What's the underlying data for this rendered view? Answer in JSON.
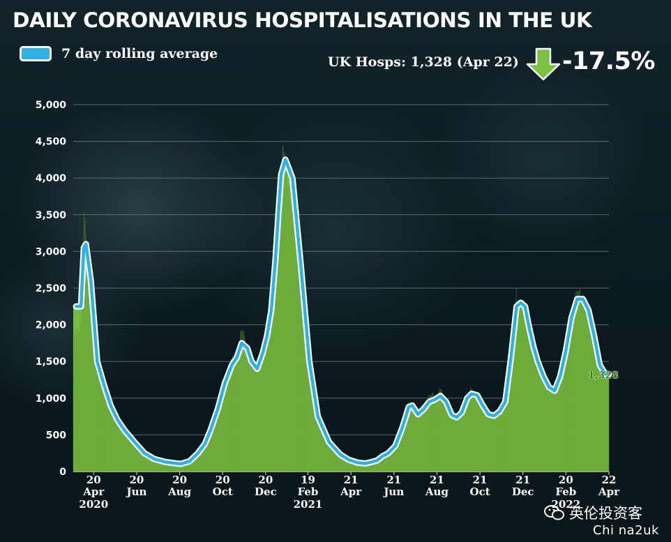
{
  "title": "DAILY CORONAVIRUS HOSPITALISATIONS IN THE UK",
  "legend": {
    "label": "7 day rolling average",
    "color": "#29b3e8"
  },
  "summary": {
    "text": "UK Hosps: 1,328 (Apr 22)",
    "change": "-17.5%",
    "arrow_color": "#7cc242"
  },
  "watermark": {
    "text": "英伦投资客",
    "subtext": "Chi na2uk",
    "icon": "wechat-icon"
  },
  "chart_data": {
    "type": "area",
    "title": "DAILY CORONAVIRUS HOSPITALISATIONS IN THE UK",
    "xlabel": "",
    "ylabel": "",
    "ylim": [
      0,
      5000
    ],
    "yticks": [
      0,
      500,
      1000,
      1500,
      2000,
      2500,
      3000,
      3500,
      4000,
      4500,
      5000
    ],
    "ytick_labels": [
      "0",
      "500",
      "1,000",
      "1,500",
      "2,000",
      "2,500",
      "3,000",
      "3,500",
      "4,000",
      "4,500",
      "5,000"
    ],
    "grid": true,
    "xticks": [
      {
        "day": 0,
        "top": "20",
        "bottom": "Apr",
        "year": "2020"
      },
      {
        "day": 61,
        "top": "20",
        "bottom": "Jun",
        "year": ""
      },
      {
        "day": 122,
        "top": "20",
        "bottom": "Aug",
        "year": ""
      },
      {
        "day": 183,
        "top": "20",
        "bottom": "Oct",
        "year": ""
      },
      {
        "day": 244,
        "top": "20",
        "bottom": "Dec",
        "year": ""
      },
      {
        "day": 304,
        "top": "19",
        "bottom": "Feb",
        "year": "2021"
      },
      {
        "day": 365,
        "top": "21",
        "bottom": "Apr",
        "year": ""
      },
      {
        "day": 426,
        "top": "21",
        "bottom": "Jun",
        "year": ""
      },
      {
        "day": 487,
        "top": "21",
        "bottom": "Aug",
        "year": ""
      },
      {
        "day": 548,
        "top": "21",
        "bottom": "Oct",
        "year": ""
      },
      {
        "day": 609,
        "top": "21",
        "bottom": "Dec",
        "year": ""
      },
      {
        "day": 670,
        "top": "20",
        "bottom": "Feb",
        "year": "2022"
      },
      {
        "day": 731,
        "top": "22",
        "bottom": "Apr",
        "year": ""
      }
    ],
    "xlim": [
      -29,
      731
    ],
    "series": [
      {
        "name": "7 day rolling average",
        "style": "line",
        "color": "#29b3e8",
        "x": [
          -25,
          -18,
          -14,
          -11,
          -4,
          5,
          14,
          24,
          34,
          44,
          58,
          72,
          86,
          102,
          118,
          124,
          136,
          148,
          158,
          166,
          176,
          186,
          196,
          203,
          210,
          218,
          224,
          232,
          240,
          246,
          252,
          258,
          262,
          266,
          272,
          282,
          294,
          306,
          318,
          334,
          350,
          362,
          375,
          386,
          402,
          410,
          418,
          428,
          438,
          447,
          452,
          460,
          468,
          476,
          484,
          492,
          500,
          508,
          515,
          522,
          530,
          536,
          544,
          552,
          560,
          568,
          576,
          584,
          592,
          600,
          606,
          612,
          617,
          624,
          630,
          638,
          646,
          654,
          662,
          670,
          678,
          686,
          694,
          702,
          710,
          718,
          726,
          731
        ],
        "y": [
          2250,
          2250,
          3050,
          3100,
          2600,
          1500,
          1200,
          900,
          700,
          560,
          400,
          250,
          170,
          130,
          110,
          105,
          140,
          250,
          380,
          570,
          850,
          1200,
          1450,
          1550,
          1750,
          1680,
          1500,
          1400,
          1620,
          1850,
          2200,
          2900,
          3500,
          4050,
          4250,
          4000,
          2800,
          1500,
          750,
          400,
          230,
          160,
          120,
          110,
          150,
          210,
          250,
          350,
          600,
          880,
          900,
          780,
          850,
          950,
          980,
          1030,
          950,
          770,
          740,
          800,
          1000,
          1060,
          1040,
          900,
          780,
          760,
          820,
          950,
          1550,
          2250,
          2300,
          2250,
          2000,
          1700,
          1500,
          1300,
          1150,
          1100,
          1300,
          1650,
          2100,
          2350,
          2350,
          2200,
          1850,
          1450,
          1328,
          1328
        ]
      },
      {
        "name": "",
        "style": "bars",
        "color": "#7cc242",
        "x": [
          -25,
          -18,
          -14,
          -11,
          -4,
          5,
          14,
          24,
          34,
          44,
          58,
          72,
          86,
          102,
          118,
          124,
          136,
          148,
          158,
          166,
          176,
          186,
          196,
          203,
          210,
          218,
          224,
          232,
          240,
          246,
          252,
          258,
          262,
          266,
          272,
          282,
          294,
          306,
          318,
          334,
          350,
          362,
          375,
          386,
          402,
          410,
          418,
          428,
          438,
          447,
          452,
          460,
          468,
          476,
          484,
          492,
          500,
          508,
          515,
          522,
          530,
          536,
          544,
          552,
          560,
          568,
          576,
          584,
          592,
          600,
          606,
          612,
          617,
          624,
          630,
          638,
          646,
          654,
          662,
          670,
          678,
          686,
          694,
          702,
          710,
          718,
          726,
          731
        ],
        "y": [
          1800,
          2100,
          3500,
          3200,
          2500,
          1400,
          1250,
          900,
          700,
          600,
          380,
          260,
          180,
          140,
          110,
          105,
          150,
          260,
          400,
          600,
          900,
          1250,
          1500,
          1600,
          1900,
          1700,
          1450,
          1450,
          1700,
          1900,
          2350,
          3100,
          3800,
          4350,
          4200,
          3700,
          2600,
          1400,
          700,
          380,
          220,
          150,
          120,
          110,
          160,
          220,
          260,
          380,
          650,
          900,
          880,
          800,
          900,
          1000,
          1050,
          1100,
          900,
          750,
          760,
          850,
          1050,
          1100,
          1000,
          870,
          760,
          780,
          850,
          950,
          1600,
          2400,
          2300,
          2200,
          1850,
          1650,
          1450,
          1250,
          1100,
          1150,
          1400,
          1700,
          2200,
          2400,
          2450,
          2150,
          1800,
          1400,
          1300,
          1300
        ]
      }
    ],
    "annotations": [
      {
        "text": "1,328",
        "x": 731,
        "y": 1328
      }
    ]
  }
}
